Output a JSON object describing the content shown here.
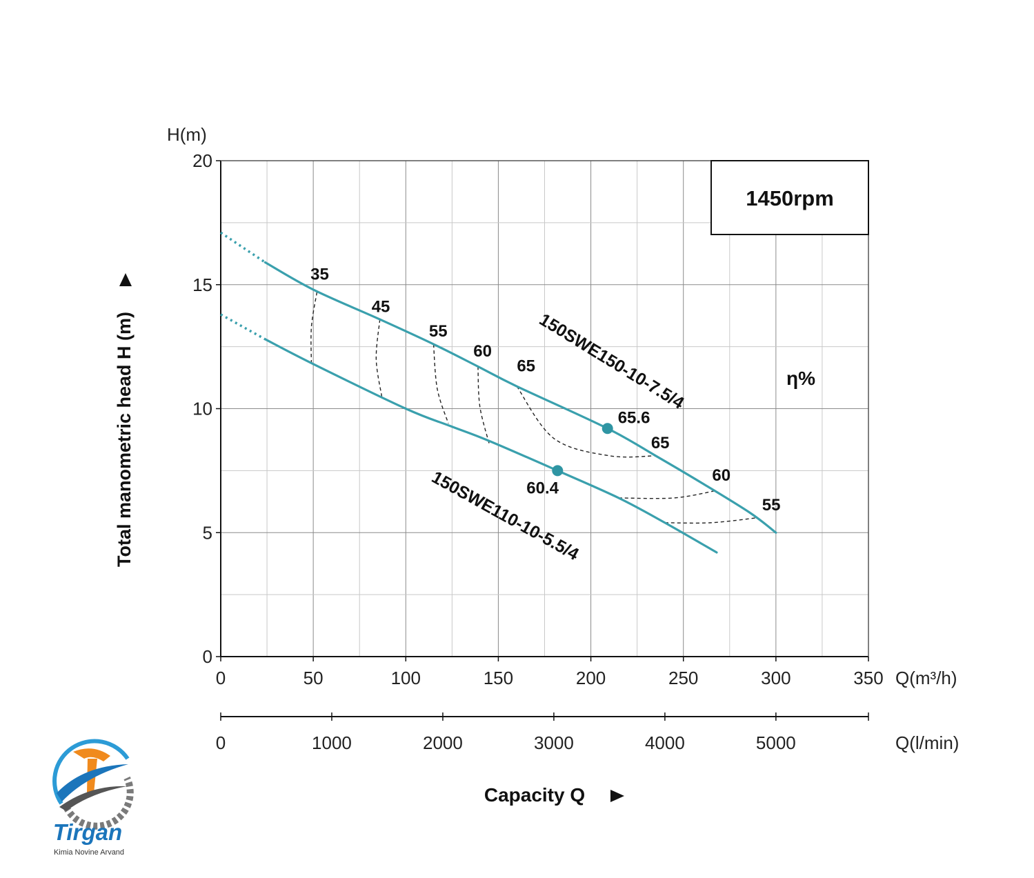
{
  "chart_data": {
    "type": "line",
    "speed_label": "1450rpm",
    "efficiency_label": "η%",
    "y_axis_title": "Total manometric head H (m)",
    "y_unit": "H(m)",
    "x_axis_title": "Capacity Q",
    "x_unit_primary": "Q(m³/h)",
    "x_unit_secondary": "Q(l/min)",
    "xlim": [
      0,
      350
    ],
    "ylim": [
      0,
      20
    ],
    "x_ticks": [
      0,
      50,
      100,
      150,
      200,
      250,
      300,
      350
    ],
    "y_ticks": [
      0,
      5,
      10,
      15,
      20
    ],
    "x2_ticks": [
      0,
      1000,
      2000,
      3000,
      4000,
      5000
    ],
    "grid": true,
    "series": [
      {
        "name": "150SWE150-10-7.5/4",
        "color": "#3aa0ad",
        "dashed_segment": [
          [
            0,
            17.1
          ],
          [
            24,
            15.9
          ]
        ],
        "x": [
          24,
          50,
          86,
          115,
          139,
          160,
          209,
          235,
          260,
          286,
          300
        ],
        "y": [
          15.9,
          14.8,
          13.6,
          12.6,
          11.7,
          10.9,
          9.2,
          8.1,
          7.0,
          5.8,
          5.0
        ]
      },
      {
        "name": "150SWE110-10-5.5/4",
        "color": "#3aa0ad",
        "dashed_segment": [
          [
            0,
            13.8
          ],
          [
            24,
            12.8
          ]
        ],
        "x": [
          24,
          50,
          100,
          124,
          145,
          182,
          215,
          240,
          268
        ],
        "y": [
          12.8,
          11.8,
          10.0,
          9.3,
          8.7,
          7.5,
          6.4,
          5.4,
          4.2
        ]
      }
    ],
    "best_efficiency_points": [
      {
        "x": 209,
        "y": 9.2,
        "label": "65.6"
      },
      {
        "x": 182,
        "y": 7.5,
        "label": "60.4"
      }
    ],
    "efficiency_labels": [
      {
        "text": "35",
        "x": 53.5,
        "y": 15.2
      },
      {
        "text": "45",
        "x": 86.5,
        "y": 13.9
      },
      {
        "text": "55",
        "x": 117.5,
        "y": 12.9
      },
      {
        "text": "60",
        "x": 141.5,
        "y": 12.1
      },
      {
        "text": "65",
        "x": 165,
        "y": 11.5
      },
      {
        "text": "65",
        "x": 237.5,
        "y": 8.4
      },
      {
        "text": "60",
        "x": 270.5,
        "y": 7.1
      },
      {
        "text": "55",
        "x": 297.5,
        "y": 5.9
      }
    ],
    "efficiency_contours": [
      {
        "label": "35",
        "points": [
          [
            52,
            14.7
          ],
          [
            49,
            13.3
          ],
          [
            49,
            11.8
          ]
        ]
      },
      {
        "label": "45",
        "points": [
          [
            86,
            13.6
          ],
          [
            84,
            12.0
          ],
          [
            87,
            10.5
          ]
        ]
      },
      {
        "label": "55",
        "points": [
          [
            115,
            12.6
          ],
          [
            117,
            10.8
          ],
          [
            123,
            9.4
          ]
        ]
      },
      {
        "label": "60",
        "points": [
          [
            139,
            11.7
          ],
          [
            140,
            10.1
          ],
          [
            145,
            8.6
          ]
        ]
      },
      {
        "label": "65",
        "points": [
          [
            160,
            10.9
          ],
          [
            180,
            8.8
          ],
          [
            210,
            8.1
          ],
          [
            235,
            8.1
          ]
        ]
      },
      {
        "label": "60",
        "points": [
          [
            215,
            6.4
          ],
          [
            245,
            6.4
          ],
          [
            268,
            6.7
          ]
        ]
      },
      {
        "label": "55",
        "points": [
          [
            240,
            5.4
          ],
          [
            265,
            5.4
          ],
          [
            290,
            5.6
          ]
        ]
      }
    ]
  },
  "logo": {
    "brand": "Tirgan",
    "tagline": "Kimia Novine Arvand"
  }
}
